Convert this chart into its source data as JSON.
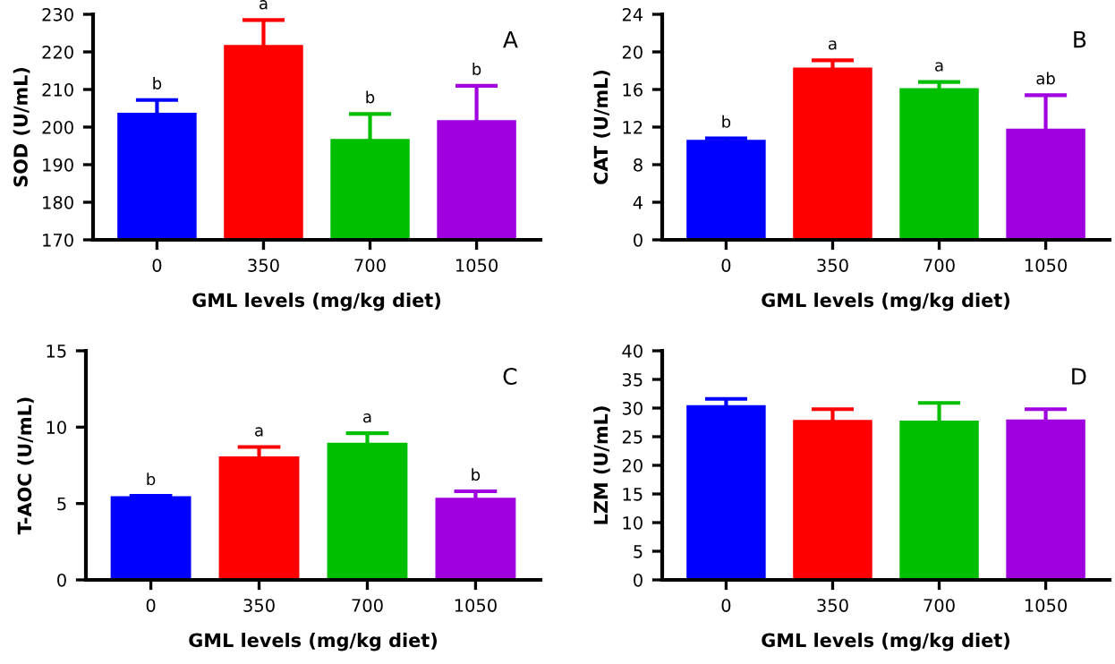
{
  "chart_data": [
    {
      "type": "bar",
      "categories": [
        "0",
        "350",
        "700",
        "1050"
      ],
      "values": [
        203.5,
        221.5,
        196.5,
        201.5
      ],
      "colors": [
        "#0000ff",
        "#ff0000",
        "#00bf00",
        "#a000e0"
      ],
      "errors": [
        [
          203.5,
          207.2
        ],
        [
          221.5,
          228.5
        ],
        [
          196.5,
          203.5
        ],
        [
          201.5,
          211
        ]
      ],
      "ylim": [
        170,
        230
      ],
      "yticks": [
        170,
        180,
        190,
        200,
        210,
        220,
        230
      ],
      "xlabel": "GML levels (mg/kg diet)",
      "ylabel": "SOD (U/mL)",
      "annotations": [
        "A",
        {
          "text": "b",
          "x": "0",
          "y": 207.2
        },
        {
          "text": "a",
          "x": "350",
          "y": 228.5
        },
        {
          "text": "b",
          "x": "700",
          "y": 203.5
        },
        {
          "text": "b",
          "x": "1050",
          "y": 211
        }
      ]
    },
    {
      "type": "bar",
      "categories": [
        "0",
        "350",
        "700",
        "1050"
      ],
      "values": [
        10.5,
        18.2,
        16.0,
        11.7
      ],
      "colors": [
        "#0000ff",
        "#ff0000",
        "#00bf00",
        "#a000e0"
      ],
      "errors": [
        [
          10.5,
          10.8
        ],
        [
          18.2,
          19.1
        ],
        [
          16.0,
          16.8
        ],
        [
          11.7,
          15.4
        ]
      ],
      "ylim": [
        0,
        24
      ],
      "yticks": [
        0,
        4,
        8,
        12,
        16,
        20,
        24
      ],
      "xlabel": "GML levels (mg/kg diet)",
      "ylabel": "CAT (U/mL)",
      "annotations": [
        "B",
        {
          "text": "b",
          "x": "0",
          "y": 10.8
        },
        {
          "text": "a",
          "x": "350",
          "y": 19.1
        },
        {
          "text": "a",
          "x": "700",
          "y": 16.8
        },
        {
          "text": "ab",
          "x": "1050",
          "y": 15.4
        }
      ]
    },
    {
      "type": "bar",
      "categories": [
        "0",
        "350",
        "700",
        "1050"
      ],
      "values": [
        5.4,
        8.0,
        8.9,
        5.3
      ],
      "colors": [
        "#0000ff",
        "#ff0000",
        "#00bf00",
        "#a000e0"
      ],
      "errors": [
        [
          5.4,
          5.5
        ],
        [
          8.0,
          8.7
        ],
        [
          8.9,
          9.6
        ],
        [
          5.3,
          5.8
        ]
      ],
      "ylim": [
        0,
        15
      ],
      "yticks": [
        0,
        5,
        10,
        15
      ],
      "xlabel": "GML levels (mg/kg diet)",
      "ylabel": "T-AOC (U/mL)",
      "annotations": [
        "C",
        {
          "text": "b",
          "x": "0",
          "y": 5.5
        },
        {
          "text": "a",
          "x": "350",
          "y": 8.7
        },
        {
          "text": "a",
          "x": "700",
          "y": 9.6
        },
        {
          "text": "b",
          "x": "1050",
          "y": 5.8
        }
      ]
    },
    {
      "type": "bar",
      "categories": [
        "0",
        "350",
        "700",
        "1050"
      ],
      "values": [
        30.3,
        27.7,
        27.6,
        27.8
      ],
      "colors": [
        "#0000ff",
        "#ff0000",
        "#00bf00",
        "#a000e0"
      ],
      "errors": [
        [
          30.3,
          31.6
        ],
        [
          27.7,
          29.8
        ],
        [
          27.6,
          30.9
        ],
        [
          27.8,
          29.8
        ]
      ],
      "ylim": [
        0,
        40
      ],
      "yticks": [
        0,
        5,
        10,
        15,
        20,
        25,
        30,
        35,
        40
      ],
      "xlabel": "GML levels (mg/kg diet)",
      "ylabel": "LZM (U/mL)",
      "annotations": [
        "D"
      ]
    }
  ]
}
